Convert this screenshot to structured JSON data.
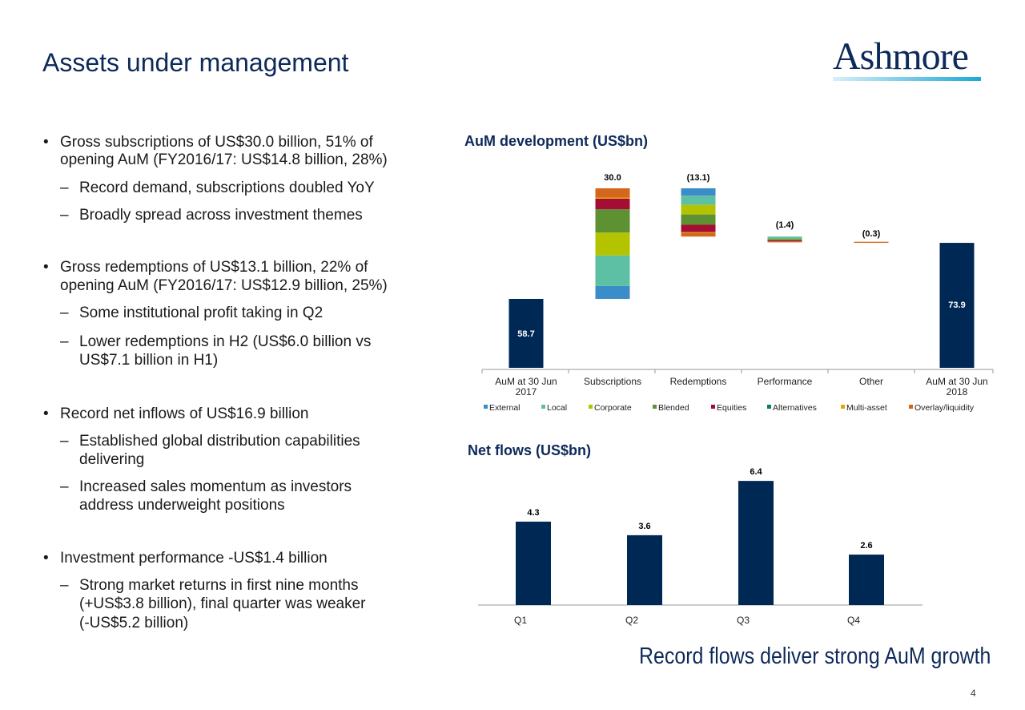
{
  "header": {
    "title": "Assets under management",
    "logo_text": "Ashmore"
  },
  "bullets": [
    {
      "lines": [
        "Gross subscriptions of US$30.0 billion, 51% of",
        "opening AuM (FY2016/17: US$14.8 billion, 28%)"
      ],
      "subs": [
        [
          "Record demand, subscriptions doubled YoY"
        ],
        [
          "Broadly spread across investment themes"
        ]
      ]
    },
    {
      "lines": [
        "Gross redemptions of US$13.1 billion, 22% of",
        "opening AuM (FY2016/17: US$12.9 billion, 25%)"
      ],
      "subs": [
        [
          "Some institutional profit taking in Q2"
        ],
        [
          "Lower redemptions in H2 (US$6.0 billion vs",
          "US$7.1 billion in H1)"
        ]
      ]
    },
    {
      "lines": [
        "Record net inflows of US$16.9 billion"
      ],
      "subs": [
        [
          "Established global distribution capabilities",
          "delivering"
        ],
        [
          "Increased sales momentum as investors",
          "address underweight positions"
        ]
      ]
    },
    {
      "lines": [
        "Investment performance -US$1.4 billion"
      ],
      "subs": [
        [
          "Strong market returns in first nine months",
          "(+US$3.8 billion), final quarter was weaker",
          "(-US$5.2 billion)"
        ]
      ]
    }
  ],
  "colors": {
    "navy": "#002855",
    "External": "#3a8dc8",
    "Local": "#5dbfa3",
    "Corporate": "#b3c300",
    "Blended": "#5d9132",
    "Equities": "#a50d34",
    "Alternatives": "#0f7a6a",
    "Multi-asset": "#e3a700",
    "Overlay/liquidity": "#d4661e"
  },
  "chart_data": [
    {
      "type": "bar",
      "subtype": "waterfall",
      "title": "AuM development (US$bn)",
      "categories": [
        "AuM at 30 Jun 2017",
        "Subscriptions",
        "Redemptions",
        "Performance",
        "Other",
        "AuM at 30 Jun 2018"
      ],
      "category_lines": [
        [
          "AuM at 30 Jun",
          "2017"
        ],
        [
          "Subscriptions"
        ],
        [
          "Redemptions"
        ],
        [
          "Performance"
        ],
        [
          "Other"
        ],
        [
          "AuM at 30 Jun",
          "2018"
        ]
      ],
      "totals": {
        "AuM at 30 Jun 2017": 58.7,
        "AuM at 30 Jun 2018": 73.9
      },
      "legend": [
        "External",
        "Local",
        "Corporate",
        "Blended",
        "Equities",
        "Alternatives",
        "Multi-asset",
        "Overlay/liquidity"
      ],
      "legend_position": "bottom",
      "series": [
        {
          "name": "External",
          "values": [
            null,
            3.5,
            -2.0,
            0,
            0,
            null
          ]
        },
        {
          "name": "Local",
          "values": [
            null,
            8.3,
            -2.5,
            -0.6,
            0,
            null
          ]
        },
        {
          "name": "Corporate",
          "values": [
            null,
            6.2,
            -2.6,
            -0.1,
            0,
            null
          ]
        },
        {
          "name": "Blended",
          "values": [
            null,
            6.3,
            -2.8,
            -0.3,
            0,
            null
          ]
        },
        {
          "name": "Equities",
          "values": [
            null,
            2.9,
            -2.0,
            -0.3,
            0,
            null
          ]
        },
        {
          "name": "Alternatives",
          "values": [
            null,
            0,
            0,
            0,
            0,
            null
          ]
        },
        {
          "name": "Multi-asset",
          "values": [
            null,
            0.3,
            -0.2,
            0,
            0,
            null
          ]
        },
        {
          "name": "Overlay/liquidity",
          "values": [
            null,
            2.5,
            -1.0,
            -0.1,
            -0.3,
            null
          ]
        }
      ],
      "data_labels": [
        "58.7",
        "30.0",
        "(13.1)",
        "(1.4)",
        "(0.3)",
        "73.9"
      ],
      "ylim": [
        40,
        95
      ],
      "grid": false
    },
    {
      "type": "bar",
      "title": "Net flows (US$bn)",
      "categories": [
        "Q1",
        "Q2",
        "Q3",
        "Q4"
      ],
      "values": [
        4.3,
        3.6,
        6.4,
        2.6
      ],
      "data_labels": [
        "4.3",
        "3.6",
        "6.4",
        "2.6"
      ],
      "ylim": [
        0,
        7
      ],
      "grid": false
    }
  ],
  "footer": {
    "tagline": "Record flows deliver strong AuM growth",
    "page_number": "4"
  }
}
